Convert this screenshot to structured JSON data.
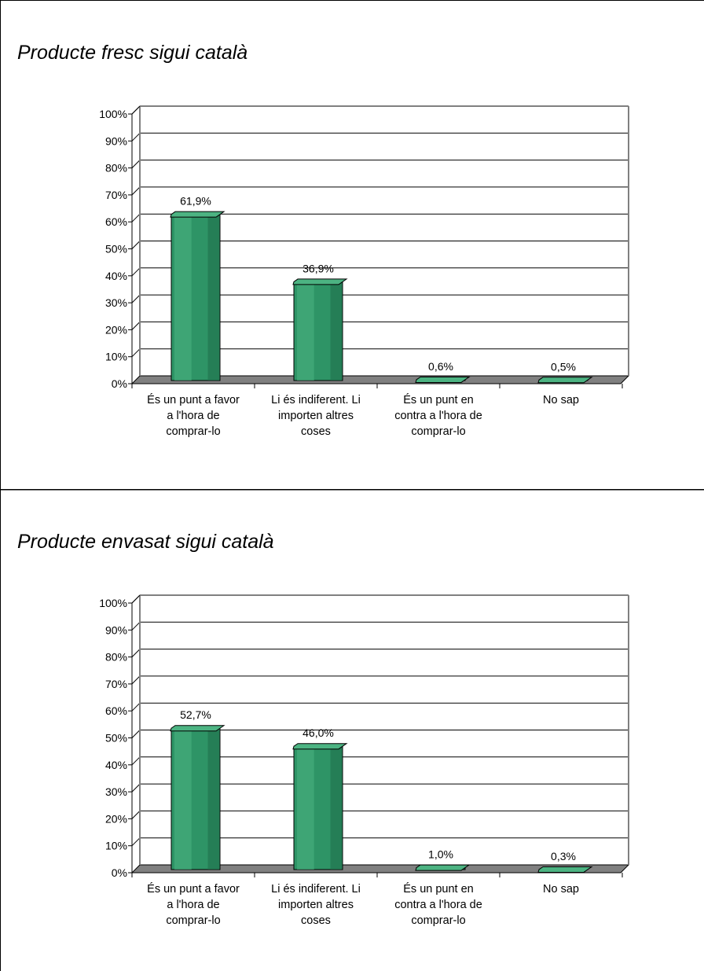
{
  "colors": {
    "bar_front": "#2e9466",
    "bar_light": "#4cb382",
    "bar_dark": "#1f6b48",
    "floor": "#808080",
    "grid": "#000000"
  },
  "chart_data": [
    {
      "type": "bar",
      "title": "Producte fresc sigui català",
      "categories": [
        "És un punt a favor a l'hora de comprar-lo",
        "Li és indiferent. Li importen altres coses",
        "És un punt en contra a l'hora de comprar-lo",
        "No sap"
      ],
      "category_lines": [
        "És un punt a favor\na l'hora de\ncomprar-lo",
        "Li és indiferent. Li\nimporten altres\ncoses",
        "És un punt en\ncontra a l'hora de\ncomprar-lo",
        "No sap"
      ],
      "values": [
        61.9,
        36.9,
        0.6,
        0.5
      ],
      "value_labels": [
        "61,9%",
        "36,9%",
        "0,6%",
        "0,5%"
      ],
      "ylim": [
        0,
        100
      ],
      "yticks": [
        "0%",
        "10%",
        "20%",
        "30%",
        "40%",
        "50%",
        "60%",
        "70%",
        "80%",
        "90%",
        "100%"
      ],
      "grid": true,
      "legend": "none"
    },
    {
      "type": "bar",
      "title": "Producte envasat sigui català",
      "categories": [
        "És un punt a favor a l'hora de comprar-lo",
        "Li és indiferent. Li importen altres coses",
        "És un punt en contra a l'hora de comprar-lo",
        "No sap"
      ],
      "category_lines": [
        "És un punt a favor\na l'hora de\ncomprar-lo",
        "Li és indiferent. Li\nimporten altres\ncoses",
        "És un punt en\ncontra a l'hora de\ncomprar-lo",
        "No sap"
      ],
      "values": [
        52.7,
        46.0,
        1.0,
        0.3
      ],
      "value_labels": [
        "52,7%",
        "46,0%",
        "1,0%",
        "0,3%"
      ],
      "ylim": [
        0,
        100
      ],
      "yticks": [
        "0%",
        "10%",
        "20%",
        "30%",
        "40%",
        "50%",
        "60%",
        "70%",
        "80%",
        "90%",
        "100%"
      ],
      "grid": true,
      "legend": "none"
    }
  ]
}
